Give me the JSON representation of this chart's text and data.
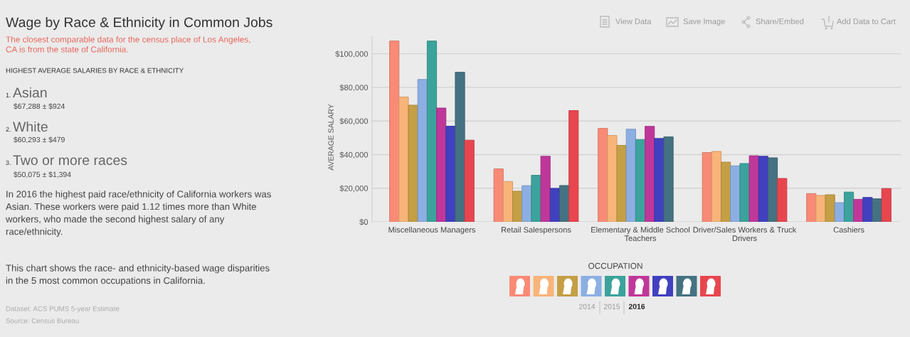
{
  "chart_data": {
    "type": "bar",
    "title": "Wage by Race & Ethnicity in Common Jobs",
    "subtitle": "The closest comparable data for the census place of Los Angeles,\nCA is from the state of California.",
    "xlabel": "OCCUPATION",
    "ylabel": "AVERAGE SALARY",
    "categories": [
      "Miscellaneous Managers",
      "Retail Salespersons",
      "Elementary & Middle School\nTeachers",
      "Driver/Sales Workers & Truck\nDrivers",
      "Cashiers"
    ],
    "series": [
      {
        "color": "#f98b76",
        "values": [
          107600,
          31500,
          55600,
          41200,
          16800
        ]
      },
      {
        "color": "#f9b479",
        "values": [
          74300,
          24000,
          51400,
          41900,
          15700
        ]
      },
      {
        "color": "#c59f45",
        "values": [
          69400,
          18200,
          45500,
          35500,
          16100
        ]
      },
      {
        "color": "#8cafe3",
        "values": [
          84700,
          21500,
          55100,
          33300,
          11400
        ]
      },
      {
        "color": "#3ba39c",
        "values": [
          107600,
          27700,
          49000,
          34700,
          17700
        ]
      },
      {
        "color": "#c0379a",
        "values": [
          67700,
          39000,
          56800,
          39300,
          13400
        ]
      },
      {
        "color": "#4141c0",
        "values": [
          56900,
          19900,
          49600,
          39000,
          14500
        ]
      },
      {
        "color": "#457282",
        "values": [
          89000,
          21600,
          50600,
          38100,
          13700
        ]
      },
      {
        "color": "#e8464f",
        "values": [
          48600,
          66200,
          null,
          25800,
          19800
        ]
      }
    ],
    "ylim": [
      0,
      110000
    ],
    "yticks": [
      {
        "value": 0,
        "label": "$0"
      },
      {
        "value": 20000,
        "label": "$20,000"
      },
      {
        "value": 40000,
        "label": "$40,000"
      },
      {
        "value": 60000,
        "label": "$60,000"
      },
      {
        "value": 80000,
        "label": "$80,000"
      },
      {
        "value": 100000,
        "label": "$100,000"
      }
    ],
    "grid": "y",
    "annotations": [
      "HIGHEST AVERAGE SALARIES BY RACE & ETHNICITY",
      "1.",
      "Asian",
      "$67,288 ± $924",
      "2.",
      "White",
      "$60,293 ± $479",
      "3.",
      "Two or more races",
      "$50,075 ± $1,394",
      "In 2016 the highest paid race/ethnicity of California workers was\nAsian. These workers were paid 1.12 times more than White\nworkers, who made the second highest salary of any\nrace/ethnicity.",
      "This chart shows the race- and ethnicity-based wage disparities\nin the 5 most common occupations in California.",
      "Dataset: ACS PUMS 5-year Estimate",
      "Source: Census Bureau",
      "View Data",
      "Save Image",
      "Share/Embed",
      "Add Data to Cart",
      "2014",
      "2015",
      "2016"
    ]
  }
}
